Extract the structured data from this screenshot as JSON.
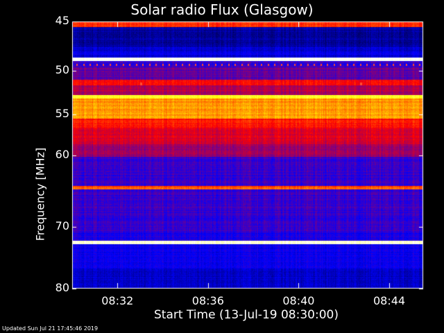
{
  "chart_data": {
    "type": "heatmap",
    "title": "Solar radio Flux (Glasgow)",
    "xlabel": "Start Time (13-Jul-19 08:30:00)",
    "ylabel": "Frequency [MHz]",
    "x_range_minutes": [
      0,
      15.5
    ],
    "xticks": [
      {
        "minute": 2,
        "label": "08:32"
      },
      {
        "minute": 6,
        "label": "08:36"
      },
      {
        "minute": 10,
        "label": "08:40"
      },
      {
        "minute": 14,
        "label": "08:44"
      }
    ],
    "y_scale": "log",
    "y_range_mhz": [
      45,
      80
    ],
    "yticks": [
      45,
      50,
      55,
      60,
      70,
      80
    ],
    "colormap": [
      "#000000",
      "#0000ff",
      "#ff0000",
      "#ffff00",
      "#ffffff"
    ],
    "intensity_bands": [
      {
        "mhz": [
          45.0,
          45.5
        ],
        "level": 0.55
      },
      {
        "mhz": [
          45.5,
          47.5
        ],
        "level": 0.15
      },
      {
        "mhz": [
          47.5,
          48.6
        ],
        "level": 0.22
      },
      {
        "mhz": [
          48.6,
          49.0
        ],
        "level": 1.0
      },
      {
        "mhz": [
          49.0,
          49.6
        ],
        "level": 0.3
      },
      {
        "mhz": [
          49.6,
          51.0
        ],
        "level": 0.35
      },
      {
        "mhz": [
          51.0,
          51.6
        ],
        "level": 0.5
      },
      {
        "mhz": [
          51.6,
          52.7
        ],
        "level": 0.42
      },
      {
        "mhz": [
          52.7,
          53.1
        ],
        "level": 0.78
      },
      {
        "mhz": [
          53.1,
          55.4
        ],
        "level": 0.65
      },
      {
        "mhz": [
          55.4,
          56.5
        ],
        "level": 0.52
      },
      {
        "mhz": [
          56.5,
          58.6
        ],
        "level": 0.47
      },
      {
        "mhz": [
          58.6,
          60.2
        ],
        "level": 0.4
      },
      {
        "mhz": [
          60.2,
          64.1
        ],
        "level": 0.3
      },
      {
        "mhz": [
          64.1,
          64.6
        ],
        "level": 0.58
      },
      {
        "mhz": [
          64.6,
          70.8
        ],
        "level": 0.3
      },
      {
        "mhz": [
          70.8,
          72.1
        ],
        "level": 0.28
      },
      {
        "mhz": [
          72.1,
          72.7
        ],
        "level": 0.95
      },
      {
        "mhz": [
          72.7,
          76.5
        ],
        "level": 0.25
      },
      {
        "mhz": [
          76.5,
          80.0
        ],
        "level": 0.2
      }
    ],
    "grid": false,
    "legend": "none"
  },
  "footer": "Updated Sun Jul 21 17:45:46 2019"
}
